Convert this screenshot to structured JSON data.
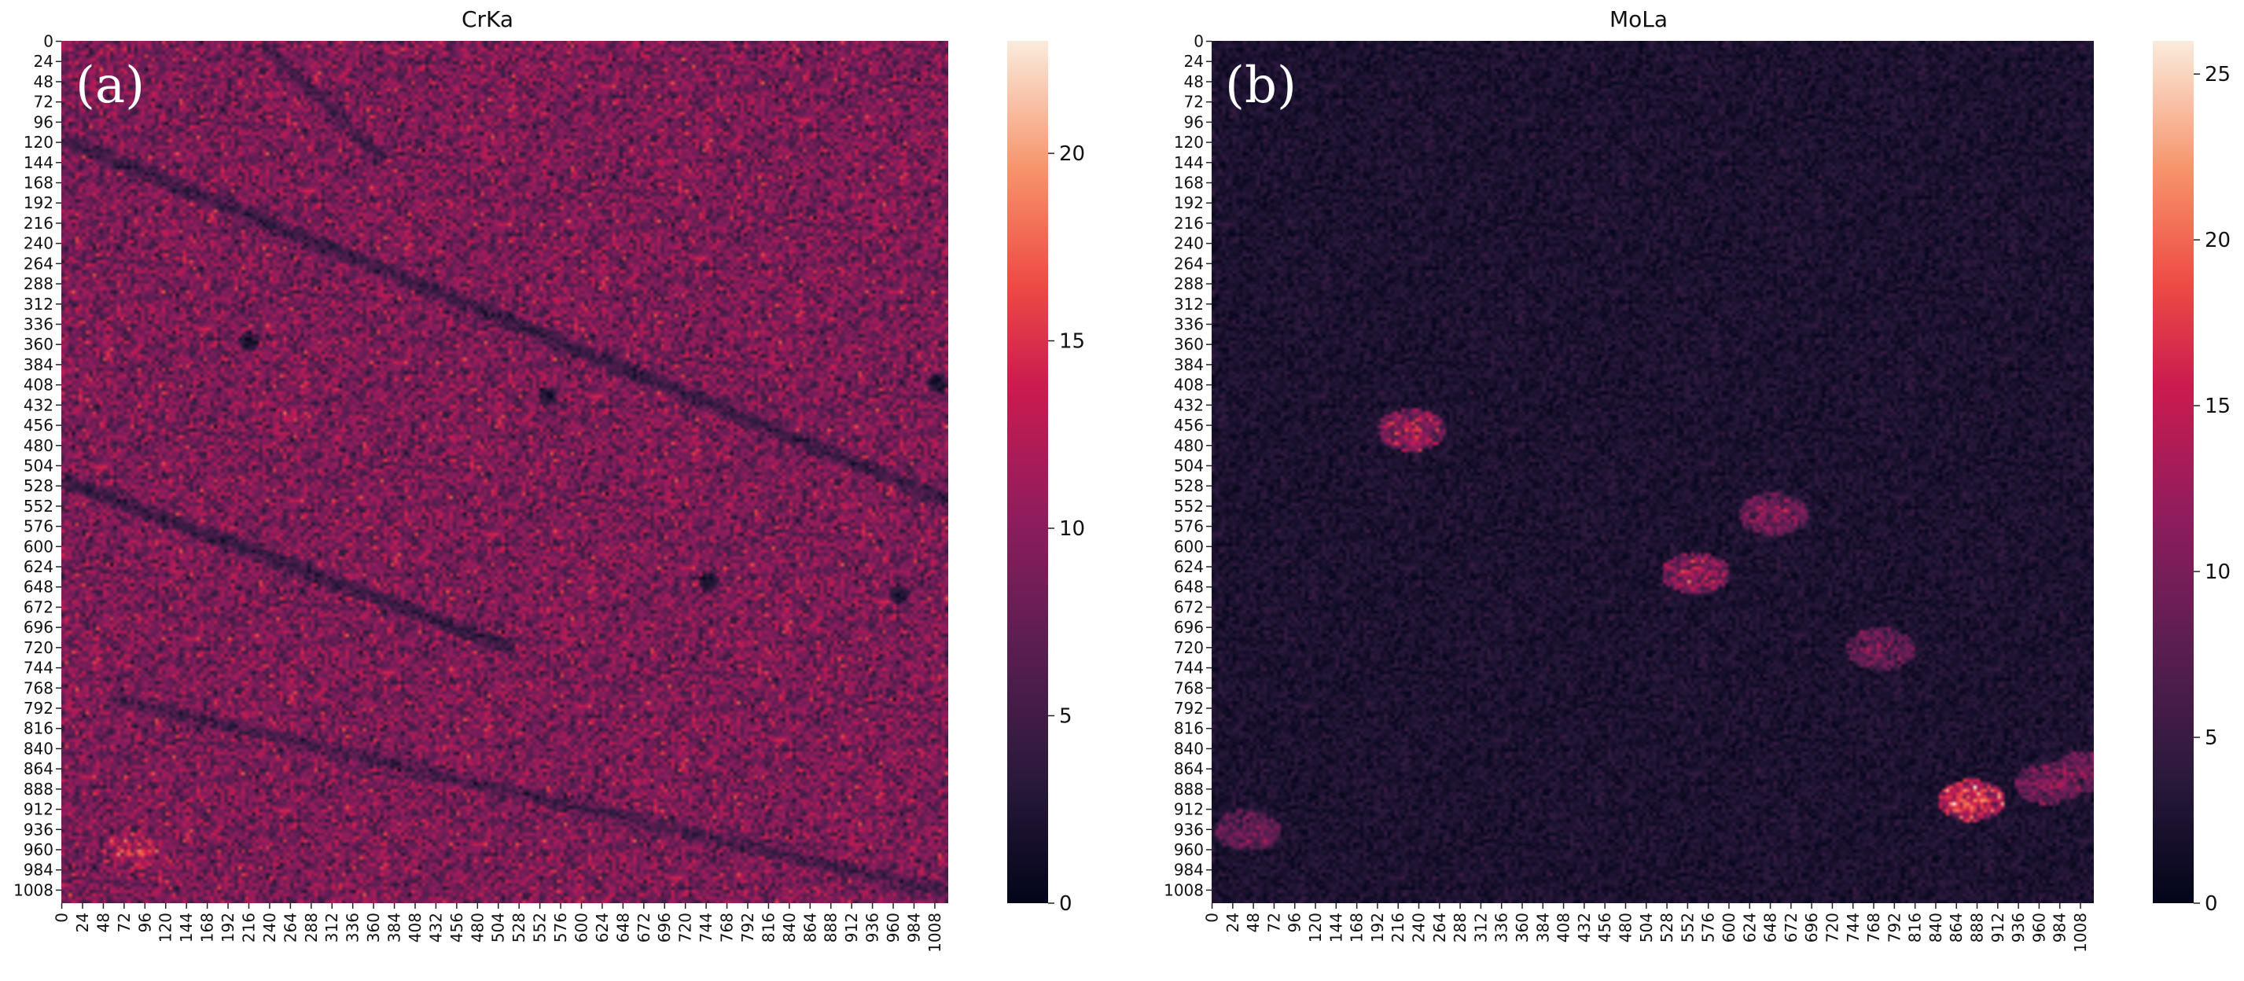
{
  "chart_data": [
    {
      "type": "heatmap",
      "panel_label": "(a)",
      "title": "CrKa",
      "xlabel": "",
      "ylabel": "",
      "x_ticks": [
        0,
        24,
        48,
        72,
        96,
        120,
        144,
        168,
        192,
        216,
        240,
        264,
        288,
        312,
        336,
        360,
        384,
        408,
        432,
        456,
        480,
        504,
        528,
        552,
        576,
        600,
        624,
        648,
        672,
        696,
        720,
        744,
        768,
        792,
        816,
        840,
        864,
        888,
        912,
        936,
        960,
        984,
        1008
      ],
      "y_ticks": [
        0,
        24,
        48,
        72,
        96,
        120,
        144,
        168,
        192,
        216,
        240,
        264,
        288,
        312,
        336,
        360,
        384,
        408,
        432,
        456,
        480,
        504,
        528,
        552,
        576,
        600,
        624,
        648,
        672,
        696,
        720,
        744,
        768,
        792,
        816,
        840,
        864,
        888,
        912,
        936,
        960,
        984,
        1008
      ],
      "xlim": [
        0,
        1024
      ],
      "ylim": [
        0,
        1024
      ],
      "colorbar": {
        "vmin": 0,
        "vmax": 23,
        "ticks": [
          0,
          5,
          10,
          15,
          20
        ]
      },
      "colormap": "rocket",
      "background_mean": 9,
      "features": [
        {
          "kind": "dark_band",
          "from": [
            0,
            115
          ],
          "to": [
            1024,
            545
          ],
          "value": 4
        },
        {
          "kind": "dark_band",
          "from": [
            0,
            520
          ],
          "to": [
            520,
            720
          ],
          "value": 4
        },
        {
          "kind": "dark_band",
          "from": [
            60,
            780
          ],
          "to": [
            1024,
            1010
          ],
          "value": 5
        },
        {
          "kind": "dark_band",
          "from": [
            230,
            0
          ],
          "to": [
            370,
            140
          ],
          "value": 5
        },
        {
          "kind": "dark_spot",
          "x": 215,
          "y": 355,
          "value": 1
        },
        {
          "kind": "dark_spot",
          "x": 560,
          "y": 420,
          "value": 1
        },
        {
          "kind": "dark_spot",
          "x": 745,
          "y": 640,
          "value": 1
        },
        {
          "kind": "dark_spot",
          "x": 965,
          "y": 655,
          "value": 1
        },
        {
          "kind": "dark_spot",
          "x": 1010,
          "y": 405,
          "value": 1
        },
        {
          "kind": "bright_region",
          "x": 270,
          "y": 445,
          "value": 11
        },
        {
          "kind": "bright_region",
          "x": 80,
          "y": 960,
          "value": 13
        }
      ]
    },
    {
      "type": "heatmap",
      "panel_label": "(b)",
      "title": "MoLa",
      "xlabel": "",
      "ylabel": "",
      "x_ticks": [
        0,
        24,
        48,
        72,
        96,
        120,
        144,
        168,
        192,
        216,
        240,
        264,
        288,
        312,
        336,
        360,
        384,
        408,
        432,
        456,
        480,
        504,
        528,
        552,
        576,
        600,
        624,
        648,
        672,
        696,
        720,
        744,
        768,
        792,
        816,
        840,
        864,
        888,
        912,
        936,
        960,
        984,
        1008
      ],
      "y_ticks": [
        0,
        24,
        48,
        72,
        96,
        120,
        144,
        168,
        192,
        216,
        240,
        264,
        288,
        312,
        336,
        360,
        384,
        408,
        432,
        456,
        480,
        504,
        528,
        552,
        576,
        600,
        624,
        648,
        672,
        696,
        720,
        744,
        768,
        792,
        816,
        840,
        864,
        888,
        912,
        936,
        960,
        984,
        1008
      ],
      "xlim": [
        0,
        1024
      ],
      "ylim": [
        0,
        1024
      ],
      "colorbar": {
        "vmin": 0,
        "vmax": 26,
        "ticks": [
          0,
          5,
          10,
          15,
          20,
          25
        ]
      },
      "colormap": "rocket",
      "background_mean": 2.5,
      "features": [
        {
          "kind": "bright_region",
          "x": 230,
          "y": 460,
          "value": 13
        },
        {
          "kind": "bright_region",
          "x": 650,
          "y": 560,
          "value": 11
        },
        {
          "kind": "bright_region",
          "x": 560,
          "y": 630,
          "value": 13
        },
        {
          "kind": "bright_region",
          "x": 775,
          "y": 720,
          "value": 10
        },
        {
          "kind": "bright_region",
          "x": 880,
          "y": 900,
          "value": 17
        },
        {
          "kind": "bright_region",
          "x": 970,
          "y": 880,
          "value": 11
        },
        {
          "kind": "bright_region",
          "x": 1015,
          "y": 865,
          "value": 10
        },
        {
          "kind": "bright_region",
          "x": 40,
          "y": 935,
          "value": 10
        }
      ]
    }
  ]
}
